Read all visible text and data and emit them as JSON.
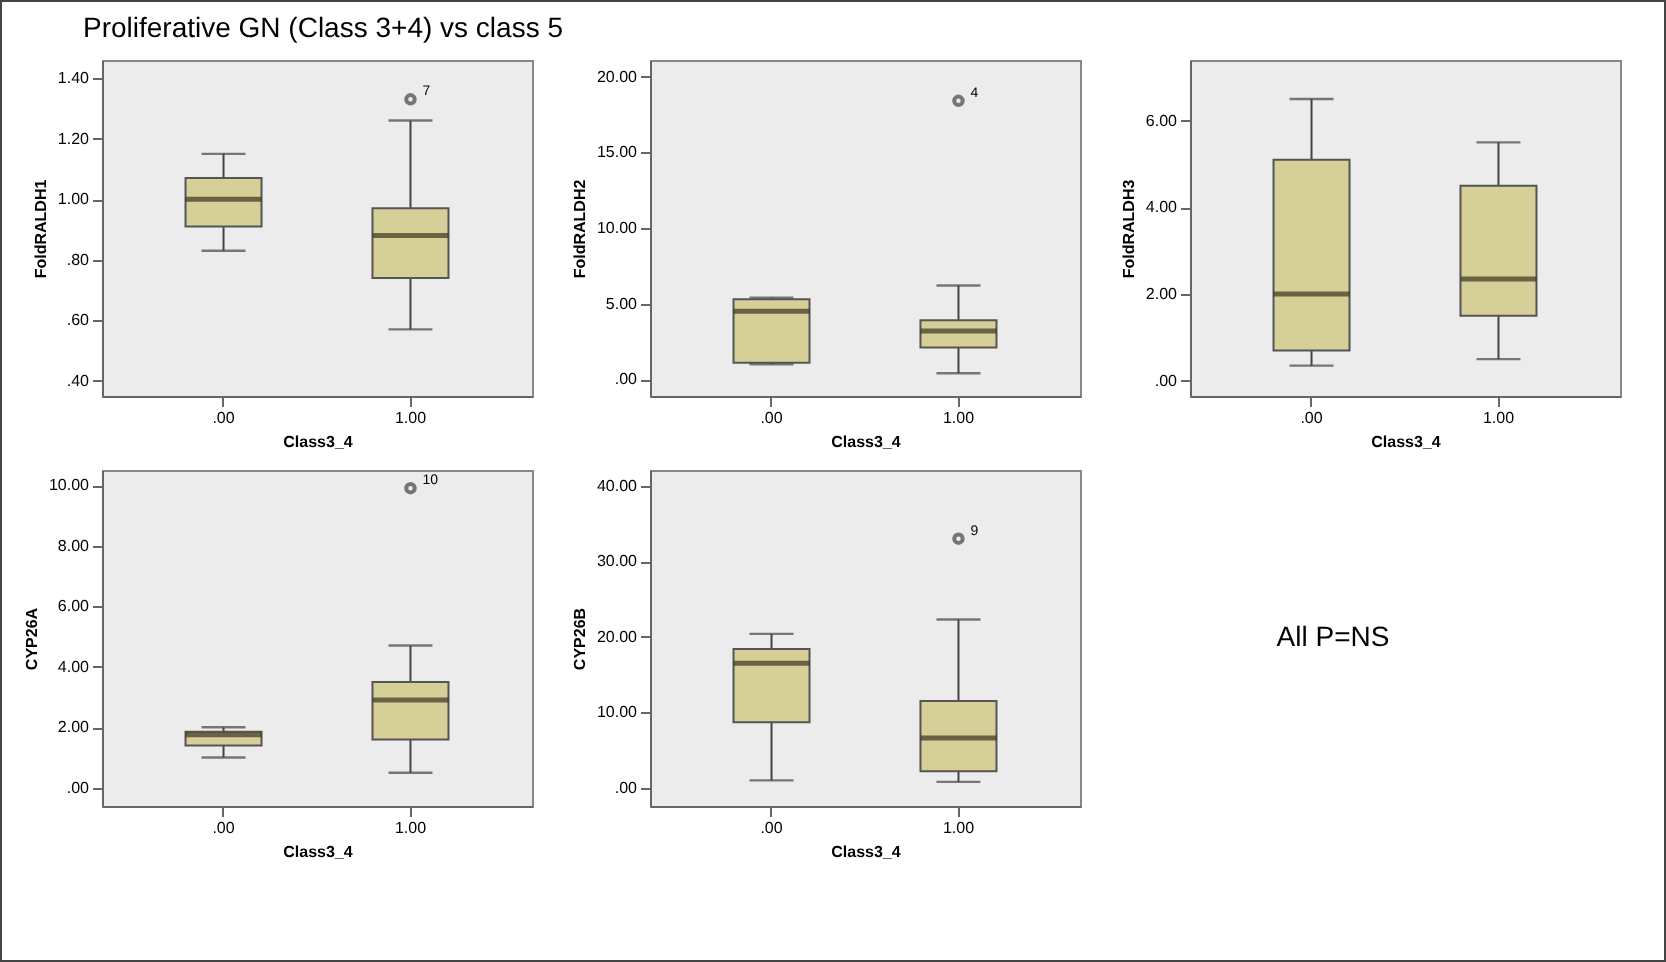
{
  "chart_data": [
    {
      "type": "box",
      "title": "Proliferative GN (Class 3+4)  vs class 5",
      "xlabel": "Class3_4",
      "ylabel": "FoldRALDH1",
      "categories": [
        ".00",
        "1.00"
      ],
      "color": "#d6cf98",
      "ylim": [
        0.35,
        1.46
      ],
      "yticks": [
        {
          "value": 0.4,
          "label": ".40"
        },
        {
          "value": 0.6,
          "label": ".60"
        },
        {
          "value": 0.8,
          "label": ".80"
        },
        {
          "value": 1,
          "label": "1.00"
        },
        {
          "value": 1.2,
          "label": "1.20"
        },
        {
          "value": 1.4,
          "label": "1.40"
        }
      ],
      "boxes": [
        {
          "low": 0.83,
          "q1": 0.91,
          "median": 1.0,
          "q3": 1.07,
          "high": 1.15
        },
        {
          "low": 0.57,
          "q1": 0.74,
          "median": 0.88,
          "q3": 0.97,
          "high": 1.26,
          "outliers": [
            1.33
          ]
        }
      ],
      "annotations": [
        "7"
      ]
    },
    {
      "type": "box",
      "xlabel": "Class3_4",
      "ylabel": "FoldRALDH2",
      "categories": [
        ".00",
        "1.00"
      ],
      "color": "#d6cf98",
      "ylim": [
        -1.1,
        21.1
      ],
      "yticks": [
        {
          "value": 0,
          "label": ".00"
        },
        {
          "value": 5,
          "label": "5.00"
        },
        {
          "value": 10,
          "label": "10.00"
        },
        {
          "value": 15,
          "label": "15.00"
        },
        {
          "value": 20,
          "label": "20.00"
        }
      ],
      "boxes": [
        {
          "low": 1.0,
          "q1": 1.1,
          "median": 4.5,
          "q3": 5.3,
          "high": 5.4
        },
        {
          "low": 0.4,
          "q1": 2.1,
          "median": 3.2,
          "q3": 3.9,
          "high": 6.2,
          "outliers": [
            18.4
          ]
        }
      ],
      "annotations": [
        "4"
      ]
    },
    {
      "type": "box",
      "xlabel": "Class3_4",
      "ylabel": "FoldRALDH3",
      "categories": [
        ".00",
        "1.00"
      ],
      "color": "#d6cf98",
      "ylim": [
        -0.35,
        7.4
      ],
      "yticks": [
        {
          "value": 0,
          "label": ".00"
        },
        {
          "value": 2,
          "label": "2.00"
        },
        {
          "value": 4,
          "label": "4.00"
        },
        {
          "value": 6,
          "label": "6.00"
        }
      ],
      "boxes": [
        {
          "low": 0.35,
          "q1": 0.7,
          "median": 2.0,
          "q3": 5.1,
          "high": 6.5
        },
        {
          "low": 0.5,
          "q1": 1.5,
          "median": 2.35,
          "q3": 4.5,
          "high": 5.5
        }
      ]
    },
    {
      "type": "box",
      "xlabel": "Class3_4",
      "ylabel": "CYP26A",
      "categories": [
        ".00",
        "1.00"
      ],
      "color": "#d6cf98",
      "ylim": [
        -0.6,
        10.5
      ],
      "yticks": [
        {
          "value": 0,
          "label": ".00"
        },
        {
          "value": 2,
          "label": "2.00"
        },
        {
          "value": 4,
          "label": "4.00"
        },
        {
          "value": 6,
          "label": "6.00"
        },
        {
          "value": 8,
          "label": "8.00"
        },
        {
          "value": 10,
          "label": "10.00"
        }
      ],
      "boxes": [
        {
          "low": 1.0,
          "q1": 1.4,
          "median": 1.75,
          "q3": 1.85,
          "high": 2.0
        },
        {
          "low": 0.5,
          "q1": 1.6,
          "median": 2.9,
          "q3": 3.5,
          "high": 4.7,
          "outliers": [
            9.9
          ]
        }
      ],
      "annotations": [
        "10"
      ]
    },
    {
      "type": "box",
      "xlabel": "Class3_4",
      "ylabel": "CYP26B",
      "categories": [
        ".00",
        "1.00"
      ],
      "color": "#d6cf98",
      "ylim": [
        -2.4,
        42.1
      ],
      "yticks": [
        {
          "value": 0,
          "label": ".00"
        },
        {
          "value": 10,
          "label": "10.00"
        },
        {
          "value": 20,
          "label": "20.00"
        },
        {
          "value": 30,
          "label": "30.00"
        },
        {
          "value": 40,
          "label": "40.00"
        }
      ],
      "boxes": [
        {
          "low": 1.0,
          "q1": 8.7,
          "median": 16.5,
          "q3": 18.4,
          "high": 20.4
        },
        {
          "low": 0.8,
          "q1": 2.2,
          "median": 6.6,
          "q3": 11.5,
          "high": 22.3,
          "outliers": [
            33
          ]
        }
      ],
      "annotations": [
        "9"
      ]
    },
    {
      "type": "other",
      "annotations": [
        "All P=NS"
      ]
    }
  ]
}
